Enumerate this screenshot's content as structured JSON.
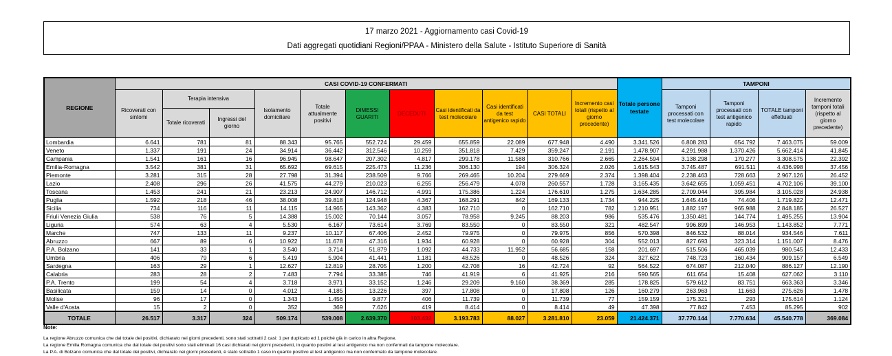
{
  "title_box": {
    "line1": "17 marzo 2021 - Aggiornamento casi Covid-19",
    "line2": "Dati aggregati quotidiani Regioni/PPAA - Ministero della Salute - Istituto Superiore di Sanità"
  },
  "colors": {
    "green": "#1FA750",
    "red": "#FE0000",
    "dark_red": "#9C0006",
    "yellow": "#FFC000",
    "cyan": "#00B0F0",
    "light_blue": "#BDD7EE",
    "gray_dark": "#A6A6A6",
    "gray_mid": "#BFBFBF",
    "gray_light": "#D9D9D9"
  },
  "table": {
    "headers": {
      "regione": "REGIONE",
      "confermati": "CASI COVID-19 CONFERMATI",
      "tamponi": "TAMPONI",
      "terapia": "Terapia intensiva",
      "ricoverati": "Ricoverati con sintomi",
      "ti_totale": "Totale ricoverati",
      "ti_ingressi": "Ingressi del giorno",
      "isolamento": "Isolamento domiciliare",
      "attualmente": "Totale attualmente positivi",
      "guariti": "DIMESSI GUARITI",
      "deceduti": "DECEDUTI",
      "casi_mol": "Casi identificati da test molecolare",
      "casi_ant": "Casi identificati da test antigenico rapido",
      "casi_tot": "CASI TOTALI",
      "incr_casi": "Incremento casi totali (rispetto al giorno precedente)",
      "testate": "Totale persone testate",
      "tamp_mol": "Tamponi processati con test molecolare",
      "tamp_ant": "Tamponi processati con test antigenico rapido",
      "tamp_tot": "TOTALE tamponi effettuati",
      "incr_tamp": "Incremento tamponi totali (rispetto al giorno precedente)"
    },
    "rows": [
      [
        "Lombardia",
        "6.641",
        "781",
        "81",
        "88.343",
        "95.765",
        "552.724",
        "29.459",
        "655.859",
        "22.089",
        "677.948",
        "4.490",
        "3.341.526",
        "6.808.283",
        "654.792",
        "7.463.075",
        "59.009"
      ],
      [
        "Veneto",
        "1.337",
        "191",
        "24",
        "34.914",
        "36.442",
        "312.546",
        "10.259",
        "351.818",
        "7.429",
        "359.247",
        "2.191",
        "1.478.907",
        "4.291.988",
        "1.370.426",
        "5.662.414",
        "41.845"
      ],
      [
        "Campania",
        "1.541",
        "161",
        "16",
        "96.945",
        "98.647",
        "207.302",
        "4.817",
        "299.178",
        "11.588",
        "310.766",
        "2.665",
        "2.264.594",
        "3.138.298",
        "170.277",
        "3.308.575",
        "22.392"
      ],
      [
        "Emilia-Romagna",
        "3.542",
        "381",
        "31",
        "65.692",
        "69.615",
        "225.473",
        "11.236",
        "306.130",
        "194",
        "306.324",
        "2.026",
        "1.615.543",
        "3.745.487",
        "691.511",
        "4.436.998",
        "37.456"
      ],
      [
        "Piemonte",
        "3.281",
        "315",
        "28",
        "27.798",
        "31.394",
        "238.509",
        "9.766",
        "269.465",
        "10.204",
        "279.669",
        "2.374",
        "1.398.404",
        "2.238.463",
        "728.663",
        "2.967.126",
        "26.452"
      ],
      [
        "Lazio",
        "2.408",
        "296",
        "26",
        "41.575",
        "44.279",
        "210.023",
        "6.255",
        "256.479",
        "4.078",
        "260.557",
        "1.728",
        "3.165.435",
        "3.642.655",
        "1.059.451",
        "4.702.106",
        "39.100"
      ],
      [
        "Toscana",
        "1.453",
        "241",
        "21",
        "23.213",
        "24.907",
        "146.712",
        "4.991",
        "175.386",
        "1.224",
        "176.610",
        "1.275",
        "1.634.285",
        "2.709.044",
        "395.984",
        "3.105.028",
        "24.938"
      ],
      [
        "Puglia",
        "1.592",
        "218",
        "46",
        "38.008",
        "39.818",
        "124.948",
        "4.367",
        "168.291",
        "842",
        "169.133",
        "1.734",
        "944.225",
        "1.645.416",
        "74.406",
        "1.719.822",
        "12.471"
      ],
      [
        "Sicilia",
        "734",
        "116",
        "11",
        "14.115",
        "14.965",
        "143.362",
        "4.383",
        "162.710",
        "0",
        "162.710",
        "782",
        "1.210.951",
        "1.882.197",
        "965.988",
        "2.848.185",
        "26.527"
      ],
      [
        "Friuli Venezia Giulia",
        "538",
        "76",
        "5",
        "14.388",
        "15.002",
        "70.144",
        "3.057",
        "78.958",
        "9.245",
        "88.203",
        "986",
        "535.476",
        "1.350.481",
        "144.774",
        "1.495.255",
        "13.904"
      ],
      [
        "Liguria",
        "574",
        "63",
        "4",
        "5.530",
        "6.167",
        "73.614",
        "3.769",
        "83.550",
        "0",
        "83.550",
        "321",
        "482.547",
        "996.899",
        "146.953",
        "1.143.852",
        "7.771"
      ],
      [
        "Marche",
        "747",
        "133",
        "11",
        "9.237",
        "10.117",
        "67.406",
        "2.452",
        "79.975",
        "0",
        "79.975",
        "856",
        "570.398",
        "846.532",
        "88.014",
        "934.546",
        "7.611"
      ],
      [
        "Abruzzo",
        "667",
        "89",
        "6",
        "10.922",
        "11.678",
        "47.316",
        "1.934",
        "60.928",
        "0",
        "60.928",
        "304",
        "552.013",
        "827.693",
        "323.314",
        "1.151.007",
        "8.476"
      ],
      [
        "P.A. Bolzano",
        "141",
        "33",
        "1",
        "3.540",
        "3.714",
        "51.879",
        "1.092",
        "44.733",
        "11.952",
        "56.685",
        "158",
        "201.697",
        "515.506",
        "465.039",
        "980.545",
        "12.433"
      ],
      [
        "Umbria",
        "406",
        "79",
        "6",
        "5.419",
        "5.904",
        "41.441",
        "1.181",
        "48.526",
        "0",
        "48.526",
        "324",
        "327.622",
        "748.723",
        "160.434",
        "909.157",
        "6.549"
      ],
      [
        "Sardegna",
        "163",
        "29",
        "1",
        "12.627",
        "12.819",
        "28.705",
        "1.200",
        "42.708",
        "16",
        "42.724",
        "92",
        "564.522",
        "674.087",
        "212.040",
        "886.127",
        "12.190"
      ],
      [
        "Calabria",
        "283",
        "28",
        "2",
        "7.483",
        "7.794",
        "33.385",
        "746",
        "41.919",
        "6",
        "41.925",
        "216",
        "590.565",
        "611.654",
        "15.408",
        "627.062",
        "3.110"
      ],
      [
        "P.A. Trento",
        "199",
        "54",
        "4",
        "3.718",
        "3.971",
        "33.152",
        "1.246",
        "29.209",
        "9.160",
        "38.369",
        "285",
        "178.825",
        "579.612",
        "83.751",
        "663.363",
        "3.346"
      ],
      [
        "Basilicata",
        "159",
        "14",
        "0",
        "4.012",
        "4.185",
        "13.226",
        "397",
        "17.808",
        "0",
        "17.808",
        "126",
        "160.279",
        "263.963",
        "11.663",
        "275.626",
        "1.478"
      ],
      [
        "Molise",
        "96",
        "17",
        "0",
        "1.343",
        "1.456",
        "9.877",
        "406",
        "11.739",
        "0",
        "11.739",
        "77",
        "159.159",
        "175.321",
        "293",
        "175.614",
        "1.124"
      ],
      [
        "Valle d'Aosta",
        "15",
        "2",
        "0",
        "352",
        "369",
        "7.626",
        "419",
        "8.414",
        "0",
        "8.414",
        "49",
        "47.398",
        "77.842",
        "7.453",
        "85.295",
        "902"
      ]
    ],
    "total_row": [
      "TOTALE",
      "26.517",
      "3.317",
      "324",
      "509.174",
      "539.008",
      "2.639.370",
      "103.432",
      "3.193.783",
      "88.027",
      "3.281.810",
      "23.059",
      "21.424.371",
      "37.770.144",
      "7.770.634",
      "45.540.778",
      "369.084"
    ]
  },
  "notes": {
    "label": "Note:",
    "lines": [
      "La regione Abruzzo comunica che dal totale dei positivi, dichiarato nei giorni precedenti, sono stati sottratti 2 casi: 1 per duplicato ed 1 poiché già in carico in altra Regione.",
      "La regione Emilia Romagna comunica che dal totale dei positivi sono stati eliminati 16 casi dichiarati nei giorni precedenti, in quanto positivi al test antigenico ma non confermati da tampone molecolare.",
      "La P.A. di Bolzano comunica che dal totale dei positivi, dichiarato nei giorni precedenti, è stato sottratto 1 caso in quanto positivo al test antigenico ma non confermato da tampone molecolare."
    ]
  }
}
